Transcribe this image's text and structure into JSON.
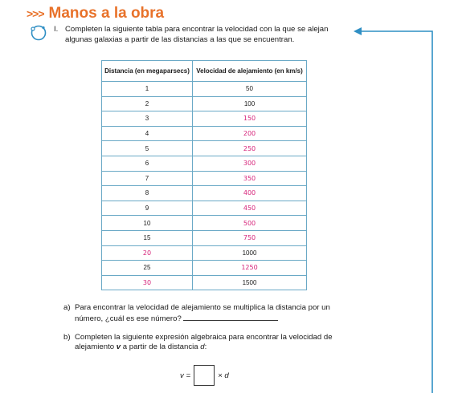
{
  "header": {
    "arrows": ">>>",
    "title": "Manos a la obra"
  },
  "instruction": {
    "number": "I.",
    "text": "Completen la siguiente tabla para encontrar la velocidad con la que se alejan algunas galaxias a partir de las distancias a las que se encuentran."
  },
  "table": {
    "headers": [
      "Distancia (en megaparsecs)",
      "Velocidad de alejamiento (en km/s)"
    ],
    "rows": [
      {
        "distance": "1",
        "velocity": "50",
        "distance_hw": false,
        "velocity_hw": false
      },
      {
        "distance": "2",
        "velocity": "100",
        "distance_hw": false,
        "velocity_hw": false
      },
      {
        "distance": "3",
        "velocity": "150",
        "distance_hw": false,
        "velocity_hw": true
      },
      {
        "distance": "4",
        "velocity": "200",
        "distance_hw": false,
        "velocity_hw": true
      },
      {
        "distance": "5",
        "velocity": "250",
        "distance_hw": false,
        "velocity_hw": true
      },
      {
        "distance": "6",
        "velocity": "300",
        "distance_hw": false,
        "velocity_hw": true
      },
      {
        "distance": "7",
        "velocity": "350",
        "distance_hw": false,
        "velocity_hw": true
      },
      {
        "distance": "8",
        "velocity": "400",
        "distance_hw": false,
        "velocity_hw": true
      },
      {
        "distance": "9",
        "velocity": "450",
        "distance_hw": false,
        "velocity_hw": true
      },
      {
        "distance": "10",
        "velocity": "500",
        "distance_hw": false,
        "velocity_hw": true
      },
      {
        "distance": "15",
        "velocity": "750",
        "distance_hw": false,
        "velocity_hw": true
      },
      {
        "distance": "20",
        "velocity": "1000",
        "distance_hw": true,
        "velocity_hw": false
      },
      {
        "distance": "25",
        "velocity": "1250",
        "distance_hw": false,
        "velocity_hw": true
      },
      {
        "distance": "30",
        "velocity": "1500",
        "distance_hw": true,
        "velocity_hw": false
      }
    ]
  },
  "question_a": {
    "label": "a)",
    "text_line1": "Para encontrar la velocidad de alejamiento se multiplica la distancia por un número, ¿cuál es ese número?"
  },
  "question_b": {
    "label": "b)",
    "text_pre": "Completen la siguiente expresión algebraica para encontrar la velocidad de alejamiento ",
    "var_v": "v",
    "text_mid": " a partir de la distancia ",
    "var_d": "d",
    "text_end": ":"
  },
  "formula": {
    "lhs": "v =",
    "rhs": "× d"
  },
  "colors": {
    "accent": "#e8722a",
    "table_border": "#3f8fb0",
    "handwriting": "#d6247a",
    "connector": "#2f8fc4"
  },
  "icons": {
    "instruction_marker": "circle-arrow-icon",
    "connector": "arrow-left-icon"
  }
}
